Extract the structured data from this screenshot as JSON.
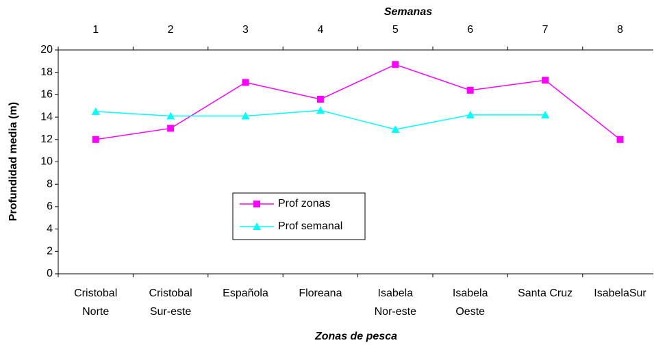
{
  "chart_data": {
    "type": "line",
    "title": "Semanas",
    "xlabel": "Zonas de pesca",
    "ylabel": "Profundidad media (m)",
    "top_categories": [
      1,
      2,
      3,
      4,
      5,
      6,
      7,
      8
    ],
    "categories": [
      [
        "Cristobal",
        "Norte"
      ],
      [
        "Cristobal",
        "Sur-este"
      ],
      [
        "Española"
      ],
      [
        "Floreana"
      ],
      [
        "Isabela",
        "Nor-este"
      ],
      [
        "Isabela",
        "Oeste"
      ],
      [
        "Santa Cruz"
      ],
      [
        "IsabelaSur"
      ]
    ],
    "series": [
      {
        "name": "Prof zonas",
        "color": "#ff00ff",
        "marker": "square",
        "values": [
          12.0,
          13.0,
          17.1,
          15.6,
          18.7,
          16.4,
          17.3,
          12.0
        ]
      },
      {
        "name": "Prof semanal",
        "color": "#00ffff",
        "marker": "triangle",
        "values": [
          14.5,
          14.1,
          14.1,
          14.6,
          12.9,
          14.2,
          14.2,
          null
        ]
      }
    ],
    "ylim": [
      0,
      20
    ],
    "yticks": [
      0,
      2,
      4,
      6,
      8,
      10,
      12,
      14,
      16,
      18,
      20
    ],
    "grid": false
  }
}
